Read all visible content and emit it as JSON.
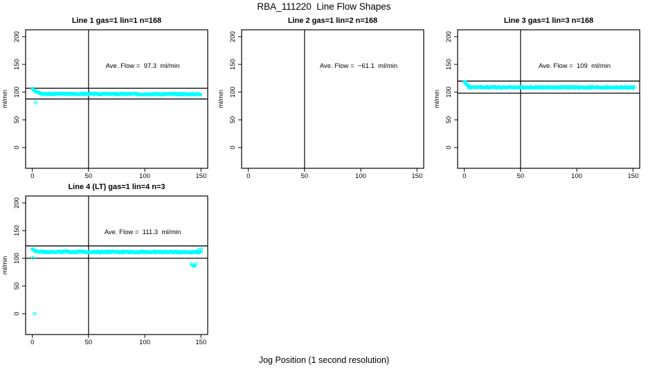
{
  "page": {
    "main_title": "RBA_111220  Line Flow Shapes",
    "x_axis_label": "Jog Position (1 second resolution)",
    "background_color": "#ffffff",
    "point_color": "#00FFFF",
    "line_color": "#000000"
  },
  "chart_data": [
    {
      "type": "scatter",
      "title": "Line 1 gas=1 lin=1 n=168",
      "annotation": "Ave. Flow =  97.3  ml/min",
      "ave_flow_ml_min": 97.3,
      "n_points": 168,
      "ylabel": "ml/min",
      "xticks": [
        0,
        50,
        100,
        150
      ],
      "yticks": [
        0,
        50,
        100,
        150,
        200
      ],
      "xlim": [
        -6,
        156
      ],
      "ylim": [
        -37.5,
        212.5
      ],
      "vline_x": 50,
      "hlines": [
        107.0,
        87.6
      ],
      "band_segments": [
        {
          "x0": 0,
          "x1": 3,
          "y0": 107,
          "y1": 101,
          "jitter": 1.0,
          "step": 0.7
        },
        {
          "x0": 3,
          "x1": 8,
          "y0": 101,
          "y1": 97,
          "jitter": 1.0,
          "step": 0.7
        },
        {
          "x0": 8,
          "x1": 150,
          "y0": 96.8,
          "y1": 96.2,
          "jitter": 1.1,
          "step": 0.6
        }
      ],
      "outliers": [
        [
          3,
          81
        ]
      ]
    },
    {
      "type": "scatter",
      "title": "Line 2 gas=1 lin=2 n=168",
      "annotation": "Ave. Flow =  −61.1  ml/min",
      "ave_flow_ml_min": -61.1,
      "n_points": 168,
      "ylabel": "ml/min",
      "xticks": [
        0,
        50,
        100,
        150
      ],
      "yticks": [
        0,
        50,
        100,
        150,
        200
      ],
      "xlim": [
        -6,
        156
      ],
      "ylim": [
        -37.5,
        212.5
      ],
      "vline_x": 50,
      "hlines": [],
      "band_segments": [],
      "outliers": []
    },
    {
      "type": "scatter",
      "title": "Line 3 gas=1 lin=3 n=168",
      "annotation": "Ave. Flow =  109  ml/min",
      "ave_flow_ml_min": 109,
      "n_points": 168,
      "ylabel": "ml/min",
      "xticks": [
        0,
        50,
        100,
        150
      ],
      "yticks": [
        0,
        50,
        100,
        150,
        200
      ],
      "xlim": [
        -6,
        156
      ],
      "ylim": [
        -37.5,
        212.5
      ],
      "vline_x": 50,
      "hlines": [
        119.9,
        98.1
      ],
      "band_segments": [
        {
          "x0": 0,
          "x1": 4,
          "y0": 118,
          "y1": 110,
          "jitter": 1.0,
          "step": 0.7
        },
        {
          "x0": 4,
          "x1": 151,
          "y0": 108.8,
          "y1": 108.3,
          "jitter": 1.2,
          "step": 0.6
        }
      ],
      "outliers": [
        [
          1,
          118.5
        ]
      ]
    },
    {
      "type": "scatter",
      "title": "Line 4 (LT) gas=1 lin=4 n=3",
      "annotation": "Ave. Flow =  111.3  ml/min",
      "ave_flow_ml_min": 111.3,
      "n_points": 3,
      "ylabel": "ml/min",
      "xticks": [
        0,
        50,
        100,
        150
      ],
      "yticks": [
        0,
        50,
        100,
        150,
        200
      ],
      "xlim": [
        -6,
        156
      ],
      "ylim": [
        -37.5,
        212.5
      ],
      "vline_x": 50,
      "hlines": [
        122.4,
        100.2
      ],
      "band_segments": [
        {
          "x0": 0,
          "x1": 4,
          "y0": 116.5,
          "y1": 112,
          "jitter": 1.2,
          "step": 0.7
        },
        {
          "x0": 4,
          "x1": 150,
          "y0": 111.8,
          "y1": 111.3,
          "jitter": 1.2,
          "step": 0.6
        }
      ],
      "outliers": [
        [
          2,
          0
        ],
        [
          0.5,
          101
        ],
        [
          141.5,
          89
        ],
        [
          142.5,
          87.5
        ],
        [
          143.5,
          86
        ],
        [
          144.5,
          86.5
        ],
        [
          145.5,
          90
        ],
        [
          147,
          113
        ],
        [
          148.5,
          116
        ],
        [
          149.5,
          112.5
        ],
        [
          150.5,
          116.5
        ]
      ]
    }
  ]
}
